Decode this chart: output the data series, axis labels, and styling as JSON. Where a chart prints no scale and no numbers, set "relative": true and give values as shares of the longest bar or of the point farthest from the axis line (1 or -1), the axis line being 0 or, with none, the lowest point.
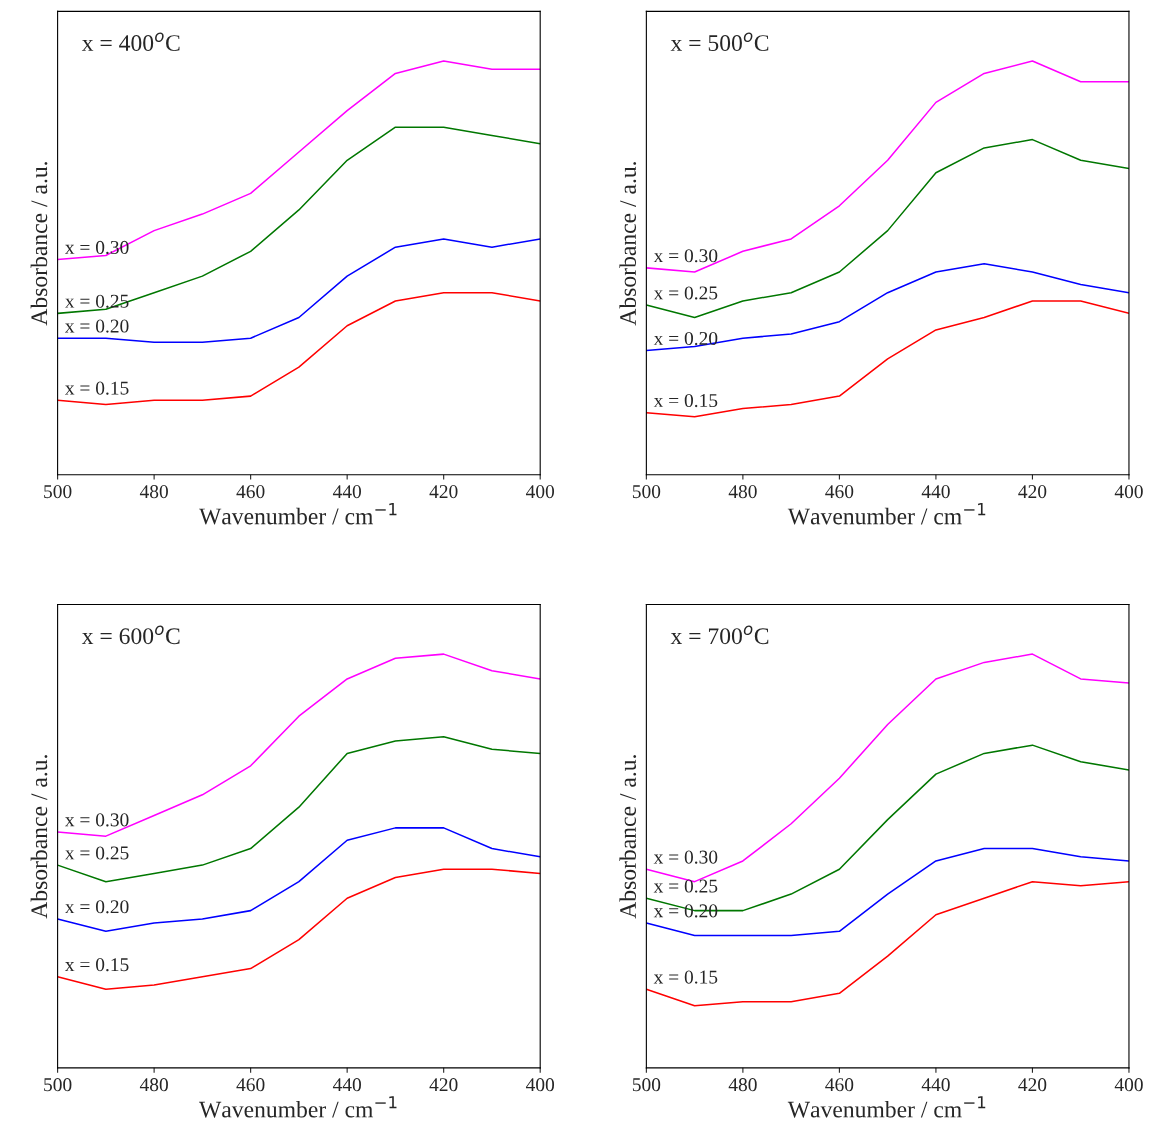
{
  "chart_data": [
    {
      "type": "line",
      "title": "x = 400$^{o}$C",
      "xlabel": "Wavenumber / cm$^{−1}$",
      "ylabel": "Absorbance / a.u.",
      "relative": true,
      "xlim": [
        500,
        400
      ],
      "xticks": [
        500,
        480,
        460,
        440,
        420,
        400
      ],
      "x": [
        500,
        490,
        480,
        470,
        460,
        450,
        440,
        430,
        420,
        410,
        400
      ],
      "legend": false,
      "grid": false,
      "series": [
        {
          "name": "x = 0.30",
          "color": "#ff00ff",
          "values": [
            0.52,
            0.53,
            0.59,
            0.63,
            0.68,
            0.78,
            0.88,
            0.97,
            1,
            0.98,
            0.98
          ]
        },
        {
          "name": "x = 0.25",
          "color": "#007700",
          "values": [
            0.39,
            0.4,
            0.44,
            0.48,
            0.54,
            0.64,
            0.76,
            0.84,
            0.84,
            0.82,
            0.8
          ]
        },
        {
          "name": "x = 0.20",
          "color": "#0000ff",
          "values": [
            0.33,
            0.33,
            0.32,
            0.32,
            0.33,
            0.38,
            0.48,
            0.55,
            0.57,
            0.55,
            0.57
          ]
        },
        {
          "name": "x = 0.15",
          "color": "#ff0000",
          "values": [
            0.18,
            0.17,
            0.18,
            0.18,
            0.19,
            0.26,
            0.36,
            0.42,
            0.44,
            0.44,
            0.42
          ]
        }
      ]
    },
    {
      "type": "line",
      "title": "x = 500$^{o}$C",
      "xlabel": "Wavenumber / cm$^{−1}$",
      "ylabel": "Absorbance / a.u.",
      "relative": true,
      "xlim": [
        500,
        400
      ],
      "xticks": [
        500,
        480,
        460,
        440,
        420,
        400
      ],
      "x": [
        500,
        490,
        480,
        470,
        460,
        450,
        440,
        430,
        420,
        410,
        400
      ],
      "legend": false,
      "grid": false,
      "series": [
        {
          "name": "x = 0.30",
          "color": "#ff00ff",
          "values": [
            0.5,
            0.49,
            0.54,
            0.57,
            0.65,
            0.76,
            0.9,
            0.97,
            1,
            0.95,
            0.95
          ]
        },
        {
          "name": "x = 0.25",
          "color": "#007700",
          "values": [
            0.41,
            0.38,
            0.42,
            0.44,
            0.49,
            0.59,
            0.73,
            0.79,
            0.81,
            0.76,
            0.74
          ]
        },
        {
          "name": "x = 0.20",
          "color": "#0000ff",
          "values": [
            0.3,
            0.31,
            0.33,
            0.34,
            0.37,
            0.44,
            0.49,
            0.51,
            0.49,
            0.46,
            0.44
          ]
        },
        {
          "name": "x = 0.15",
          "color": "#ff0000",
          "values": [
            0.15,
            0.14,
            0.16,
            0.17,
            0.19,
            0.28,
            0.35,
            0.38,
            0.42,
            0.42,
            0.39
          ]
        }
      ]
    },
    {
      "type": "line",
      "title": "x = 600$^{o}$C",
      "xlabel": "Wavenumber / cm$^{−1}$",
      "ylabel": "Absorbance / a.u.",
      "relative": true,
      "xlim": [
        500,
        400
      ],
      "xticks": [
        500,
        480,
        460,
        440,
        420,
        400
      ],
      "x": [
        500,
        490,
        480,
        470,
        460,
        450,
        440,
        430,
        420,
        410,
        400
      ],
      "legend": false,
      "grid": false,
      "series": [
        {
          "name": "x = 0.30",
          "color": "#ff00ff",
          "values": [
            0.57,
            0.56,
            0.61,
            0.66,
            0.73,
            0.85,
            0.94,
            0.99,
            1,
            0.96,
            0.94
          ]
        },
        {
          "name": "x = 0.25",
          "color": "#007700",
          "values": [
            0.49,
            0.45,
            0.47,
            0.49,
            0.53,
            0.63,
            0.76,
            0.79,
            0.8,
            0.77,
            0.76
          ]
        },
        {
          "name": "x = 0.20",
          "color": "#0000ff",
          "values": [
            0.36,
            0.33,
            0.35,
            0.36,
            0.38,
            0.45,
            0.55,
            0.58,
            0.58,
            0.53,
            0.51
          ]
        },
        {
          "name": "x = 0.15",
          "color": "#ff0000",
          "values": [
            0.22,
            0.19,
            0.2,
            0.22,
            0.24,
            0.31,
            0.41,
            0.46,
            0.48,
            0.48,
            0.47
          ]
        }
      ]
    },
    {
      "type": "line",
      "title": "x = 700$^{o}$C",
      "xlabel": "Wavenumber / cm$^{−1}$",
      "ylabel": "Absorbance / a.u.",
      "relative": true,
      "xlim": [
        500,
        400
      ],
      "xticks": [
        500,
        480,
        460,
        440,
        420,
        400
      ],
      "x": [
        500,
        490,
        480,
        470,
        460,
        450,
        440,
        430,
        420,
        410,
        400
      ],
      "legend": false,
      "grid": false,
      "series": [
        {
          "name": "x = 0.30",
          "color": "#ff00ff",
          "values": [
            0.48,
            0.45,
            0.5,
            0.59,
            0.7,
            0.83,
            0.94,
            0.98,
            1,
            0.94,
            0.93
          ]
        },
        {
          "name": "x = 0.25",
          "color": "#007700",
          "values": [
            0.41,
            0.38,
            0.38,
            0.42,
            0.48,
            0.6,
            0.71,
            0.76,
            0.78,
            0.74,
            0.72
          ]
        },
        {
          "name": "x = 0.20",
          "color": "#0000ff",
          "values": [
            0.35,
            0.32,
            0.32,
            0.32,
            0.33,
            0.42,
            0.5,
            0.53,
            0.53,
            0.51,
            0.5
          ]
        },
        {
          "name": "x = 0.15",
          "color": "#ff0000",
          "values": [
            0.19,
            0.15,
            0.16,
            0.16,
            0.18,
            0.27,
            0.37,
            0.41,
            0.45,
            0.44,
            0.45
          ]
        }
      ]
    }
  ]
}
